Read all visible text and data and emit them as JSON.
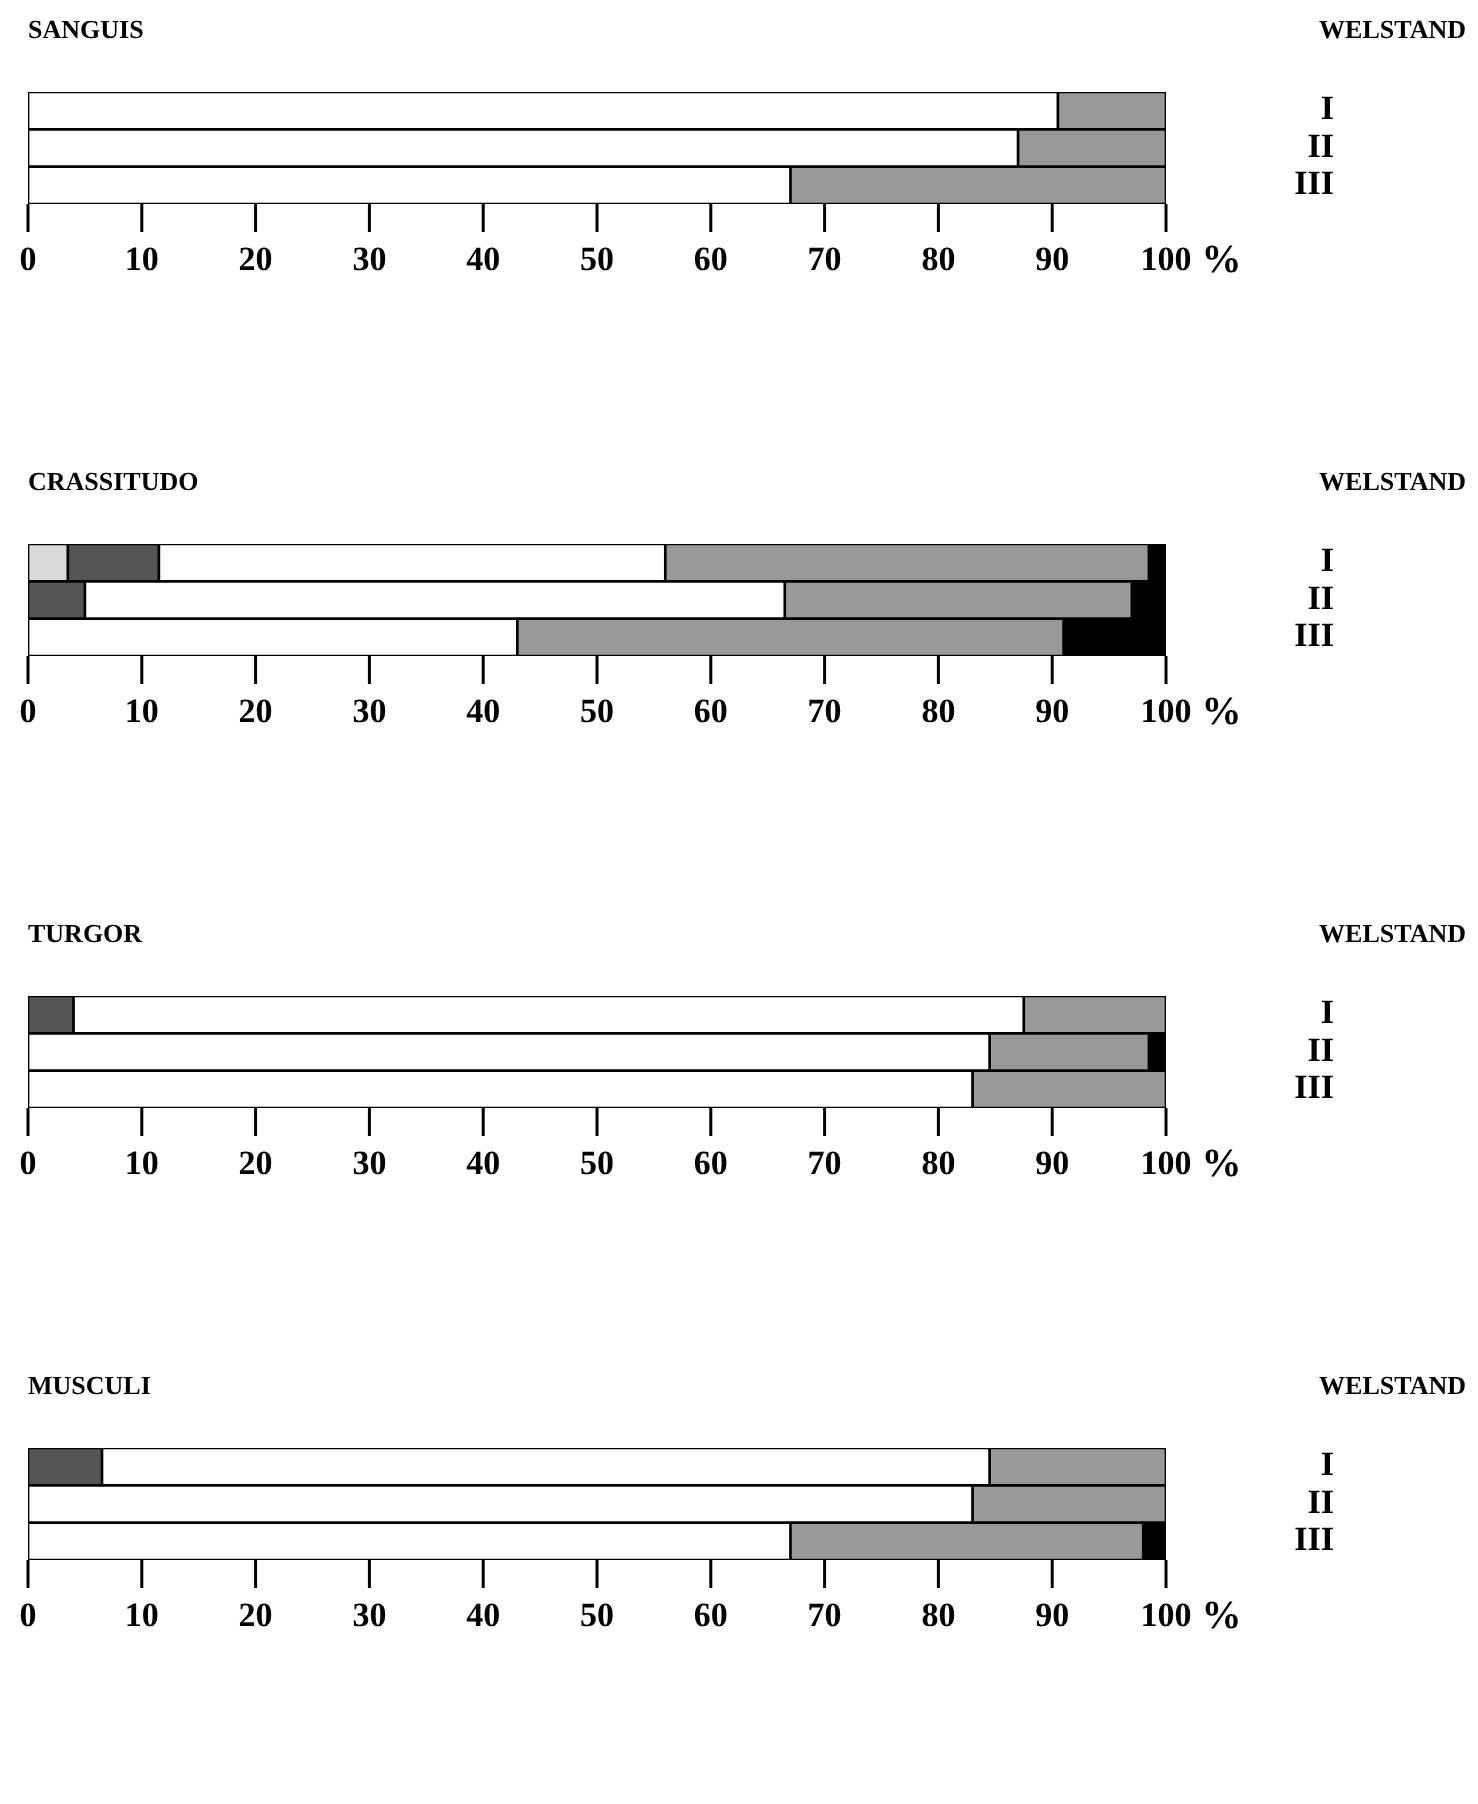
{
  "chart_data": [
    {
      "type": "bar",
      "orientation": "horizontal",
      "stacked": true,
      "title": "SANGUIS",
      "ylabel": "WELSTAND",
      "categories": [
        "I",
        "II",
        "III"
      ],
      "series": [
        {
          "color": "#ffffff",
          "values": [
            90.5,
            87,
            67
          ]
        },
        {
          "color": "#999999",
          "values": [
            9.5,
            13,
            33
          ]
        }
      ],
      "xlabel": "%",
      "xlim": [
        0,
        100
      ],
      "xticks": [
        0,
        10,
        20,
        30,
        40,
        50,
        60,
        70,
        80,
        90,
        100
      ],
      "grid": false,
      "legend": false
    },
    {
      "type": "bar",
      "orientation": "horizontal",
      "stacked": true,
      "title": "CRASSITUDO",
      "ylabel": "WELSTAND",
      "categories": [
        "I",
        "II",
        "III"
      ],
      "series": [
        {
          "color": "#d9d9d9",
          "values": [
            3.5,
            0,
            0
          ]
        },
        {
          "color": "#555555",
          "values": [
            8,
            5,
            0
          ]
        },
        {
          "color": "#ffffff",
          "values": [
            44.5,
            61.5,
            43
          ]
        },
        {
          "color": "#999999",
          "values": [
            42.5,
            30.5,
            48
          ]
        },
        {
          "color": "#000000",
          "values": [
            1.5,
            3,
            9
          ]
        }
      ],
      "xlabel": "%",
      "xlim": [
        0,
        100
      ],
      "xticks": [
        0,
        10,
        20,
        30,
        40,
        50,
        60,
        70,
        80,
        90,
        100
      ],
      "grid": false,
      "legend": false
    },
    {
      "type": "bar",
      "orientation": "horizontal",
      "stacked": true,
      "title": "TURGOR",
      "ylabel": "WELSTAND",
      "categories": [
        "I",
        "II",
        "III"
      ],
      "series": [
        {
          "color": "#555555",
          "values": [
            4,
            0,
            0
          ]
        },
        {
          "color": "#ffffff",
          "values": [
            83.5,
            84.5,
            83
          ]
        },
        {
          "color": "#999999",
          "values": [
            12.5,
            14,
            17
          ]
        },
        {
          "color": "#000000",
          "values": [
            0,
            1.5,
            0
          ]
        }
      ],
      "xlabel": "%",
      "xlim": [
        0,
        100
      ],
      "xticks": [
        0,
        10,
        20,
        30,
        40,
        50,
        60,
        70,
        80,
        90,
        100
      ],
      "grid": false,
      "legend": false
    },
    {
      "type": "bar",
      "orientation": "horizontal",
      "stacked": true,
      "title": "MUSCULI",
      "ylabel": "WELSTAND",
      "categories": [
        "I",
        "II",
        "III"
      ],
      "series": [
        {
          "color": "#555555",
          "values": [
            6.5,
            0,
            0
          ]
        },
        {
          "color": "#ffffff",
          "values": [
            78,
            83,
            67
          ]
        },
        {
          "color": "#999999",
          "values": [
            15.5,
            17,
            31
          ]
        },
        {
          "color": "#000000",
          "values": [
            0,
            0,
            2
          ]
        }
      ],
      "xlabel": "%",
      "xlim": [
        0,
        100
      ],
      "xticks": [
        0,
        10,
        20,
        30,
        40,
        50,
        60,
        70,
        80,
        90,
        100
      ],
      "grid": false,
      "legend": false
    }
  ]
}
